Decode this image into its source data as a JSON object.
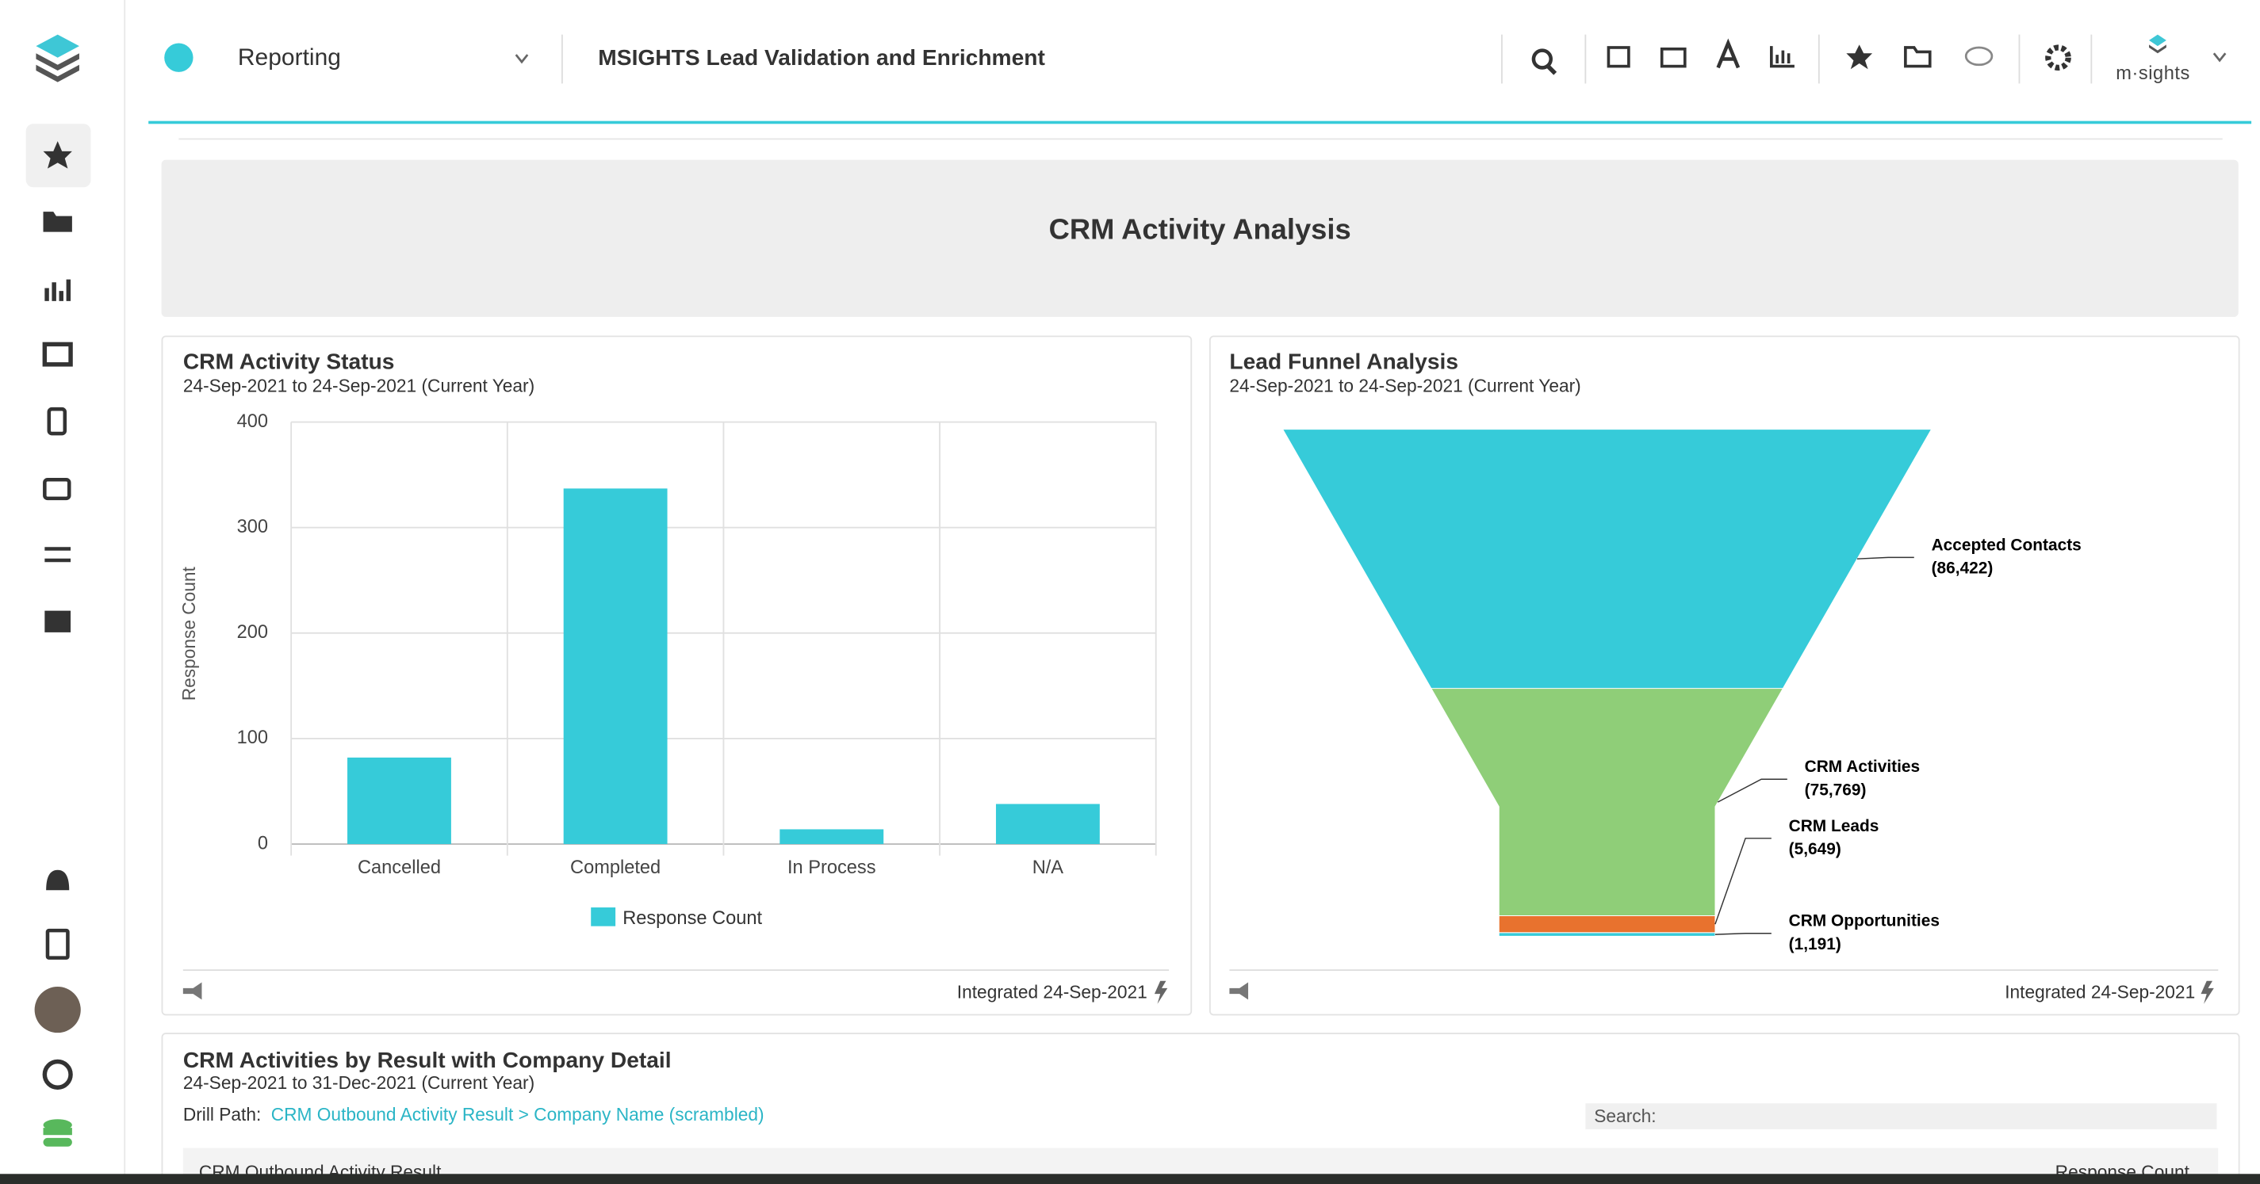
{
  "header": {
    "app": "Reporting",
    "title": "MSIGHTS Lead Validation and Enrichment",
    "brand": "m·sights"
  },
  "dashboard_title": "CRM Activity Analysis",
  "chart_data": [
    {
      "type": "bar",
      "title": "CRM Activity Status",
      "subtitle": "24-Sep-2021 to 24-Sep-2021 (Current Year)",
      "ylabel": "Response Count",
      "categories": [
        "Cancelled",
        "Completed",
        "In Process",
        "N/A"
      ],
      "series": [
        {
          "name": "Response Count",
          "color": "#36cbd9",
          "values": [
            82,
            337,
            14,
            38
          ]
        }
      ],
      "ylim": [
        0,
        400
      ],
      "yticks": [
        0,
        100,
        200,
        300,
        400
      ],
      "grid": true,
      "legend": "bottom",
      "footer": "Integrated 24-Sep-2021"
    },
    {
      "type": "funnel",
      "title": "Lead Funnel Analysis",
      "subtitle": "24-Sep-2021 to 24-Sep-2021 (Current Year)",
      "categories": [
        "Accepted Contacts",
        "CRM Activities",
        "CRM Leads",
        "CRM Opportunities"
      ],
      "values": [
        86422,
        75769,
        5649,
        1191
      ],
      "value_labels": [
        "(86,422)",
        "(75,769)",
        "(5,649)",
        "(1,191)"
      ],
      "colors": [
        "#36cbd9",
        "#8fce78",
        "#e8722e",
        "#36cbd9"
      ],
      "footer": "Integrated 24-Sep-2021"
    }
  ],
  "table": {
    "title": "CRM Activities by Result with Company Detail",
    "subtitle": "24-Sep-2021 to 31-Dec-2021 (Current Year)",
    "drill_label": "Drill Path:",
    "drill_path": "CRM Outbound Activity Result > Company Name (scrambled)",
    "search_label": "Search:",
    "columns": [
      "CRM Outbound Activity Result",
      "Response Count"
    ]
  }
}
